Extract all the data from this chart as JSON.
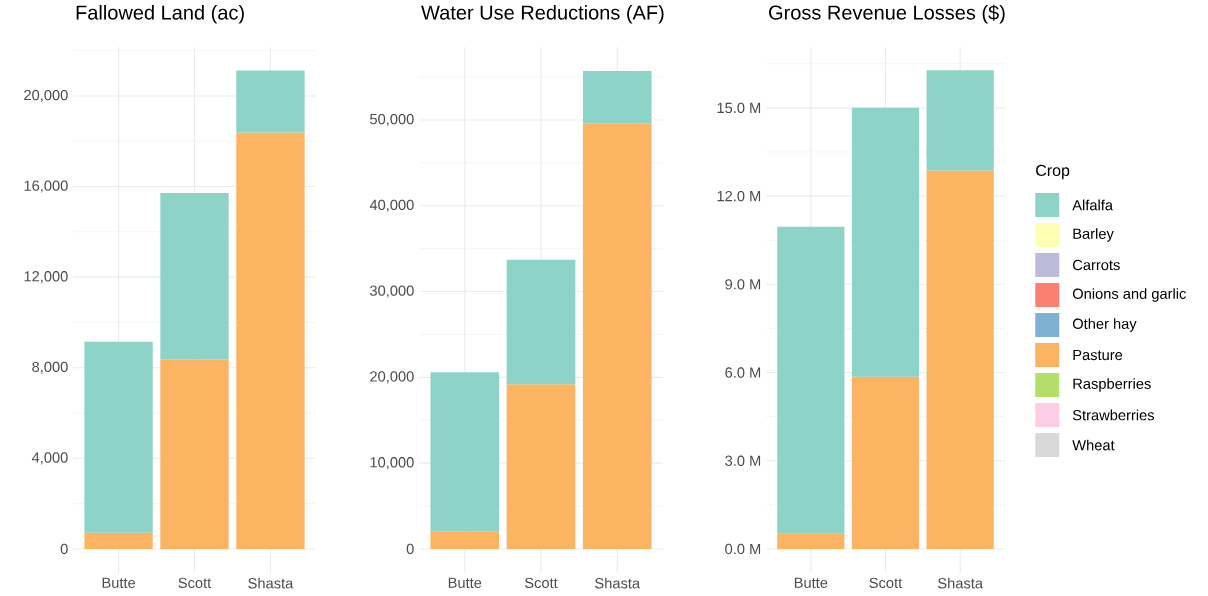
{
  "chart_data": [
    {
      "type": "bar",
      "title": "Fallowed Land (ac)",
      "stacked": true,
      "grid": true,
      "legend": false,
      "categories": [
        "Butte",
        "Scott",
        "Shasta"
      ],
      "ylim": [
        -1060,
        22160
      ],
      "yticks": [
        0,
        {
          "value": 4000,
          "label": "4,000"
        },
        {
          "value": 8000,
          "label": "8,000"
        },
        {
          "value": 12000,
          "label": "12,000"
        },
        {
          "value": 16000,
          "label": "16,000"
        },
        {
          "value": 20000,
          "label": "20,000"
        }
      ],
      "series": [
        {
          "color": "#fdb462",
          "values": [
            720,
            8370,
            18380
          ]
        },
        {
          "color": "#8dd3c7",
          "values": [
            8430,
            7350,
            2740
          ]
        }
      ]
    },
    {
      "type": "bar",
      "title": "Water Use Reductions (AF)",
      "stacked": true,
      "grid": true,
      "legend": false,
      "categories": [
        "Butte",
        "Scott",
        "Shasta"
      ],
      "ylim": [
        -2800,
        58500
      ],
      "yticks": [
        0,
        {
          "value": 10000,
          "label": "10,000"
        },
        {
          "value": 20000,
          "label": "20,000"
        },
        {
          "value": 30000,
          "label": "30,000"
        },
        {
          "value": 40000,
          "label": "40,000"
        },
        {
          "value": 50000,
          "label": "50,000"
        }
      ],
      "series": [
        {
          "color": "#fdb462",
          "values": [
            2000,
            19200,
            49600
          ]
        },
        {
          "color": "#8dd3c7",
          "values": [
            18600,
            14500,
            6100
          ]
        }
      ]
    },
    {
      "type": "bar",
      "title": "Gross Revenue Losses ($)",
      "stacked": true,
      "grid": true,
      "legend": "right",
      "legend_title": "Crop",
      "categories": [
        "Butte",
        "Scott",
        "Shasta"
      ],
      "ylim": [
        -816000,
        17070000
      ],
      "yticks": [
        {
          "value": 0,
          "label": "0.0 M"
        },
        {
          "value": 3000000,
          "label": "3.0 M"
        },
        {
          "value": 6000000,
          "label": "6.0 M"
        },
        {
          "value": 9000000,
          "label": "9.0 M"
        },
        {
          "value": 12000000,
          "label": "12.0 M"
        },
        {
          "value": 15000000,
          "label": "15.0 M"
        }
      ],
      "series": [
        {
          "name": "Wheat",
          "color": "#d9d9d9",
          "values": [
            null,
            null,
            null
          ]
        },
        {
          "name": "Strawberries",
          "color": "#fccde5",
          "values": [
            null,
            null,
            null
          ]
        },
        {
          "name": "Raspberries",
          "color": "#b3de69",
          "values": [
            null,
            null,
            null
          ]
        },
        {
          "name": "Pasture",
          "color": "#fdb462",
          "values": [
            520000,
            5860000,
            12870000
          ]
        },
        {
          "name": "Other hay",
          "color": "#80b1d3",
          "values": [
            null,
            null,
            null
          ]
        },
        {
          "name": "Onions and garlic",
          "color": "#fb8072",
          "values": [
            null,
            null,
            null
          ]
        },
        {
          "name": "Carrots",
          "color": "#bebada",
          "values": [
            null,
            null,
            null
          ]
        },
        {
          "name": "Barley",
          "color": "#ffffb3",
          "values": [
            null,
            null,
            null
          ]
        },
        {
          "name": "Alfalfa",
          "color": "#8dd3c7",
          "values": [
            10440000,
            9140000,
            3410000
          ]
        }
      ]
    }
  ]
}
